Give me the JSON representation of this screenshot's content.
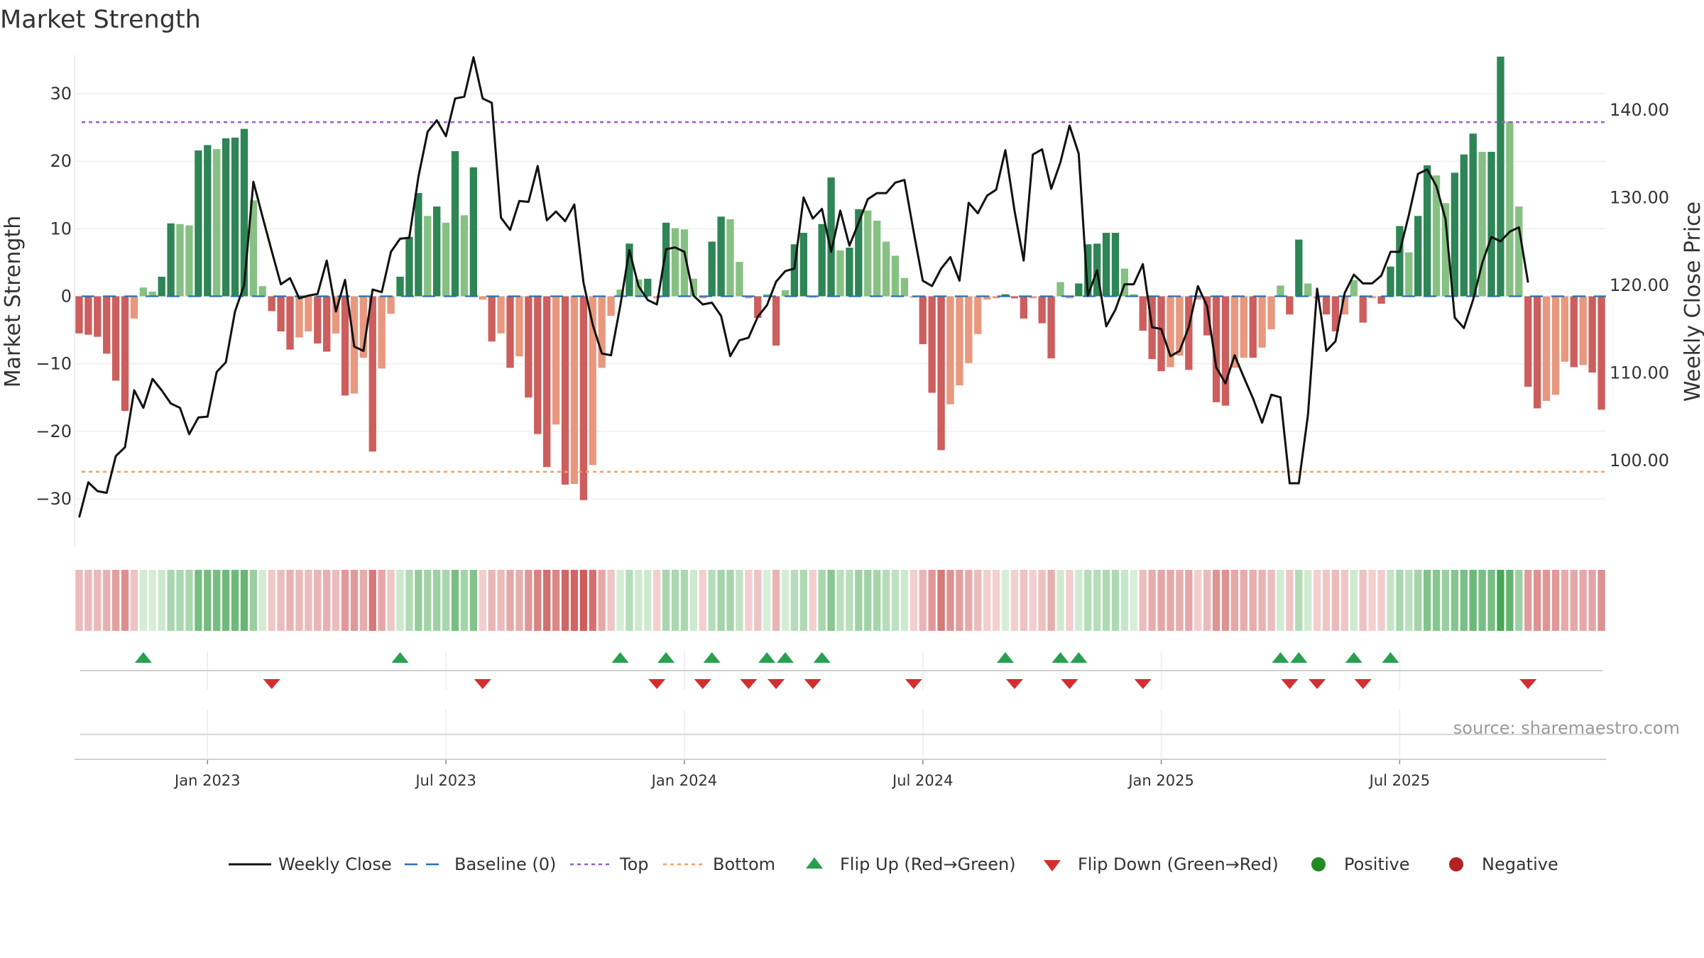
{
  "chart_data": {
    "type": "bar",
    "title": "Market Strength",
    "ylabel_left": "Market Strength",
    "ylabel_right": "Weekly Close Price",
    "ylim_left": [
      -36,
      38
    ],
    "ylim_right": [
      91,
      148
    ],
    "left_ticks": [
      30,
      20,
      10,
      0,
      -10,
      -20,
      -30
    ],
    "left_tick_labels": [
      "30",
      "20",
      "10",
      "0",
      "−10",
      "−20",
      "−30"
    ],
    "right_ticks": [
      140,
      130,
      120,
      110,
      100
    ],
    "right_tick_labels": [
      "140.00",
      "130.00",
      "120.00",
      "110.00",
      "100.00"
    ],
    "baseline": 0,
    "top_line": 25.8,
    "bottom_line": -26,
    "x_labels": [
      "Jan 2023",
      "Jul 2023",
      "Jan 2024",
      "Jul 2024",
      "Jan 2025",
      "Jul 2025"
    ],
    "x_label_positions": [
      14.5,
      40.5,
      66.5,
      92.5,
      118.5,
      144.5
    ],
    "strength": [
      -5.5,
      -5.7,
      -6,
      -8.5,
      -12.5,
      -17,
      -3.3,
      1.3,
      0.7,
      2.9,
      10.8,
      10.7,
      10.5,
      21.6,
      22.4,
      21.8,
      23.4,
      23.5,
      24.8,
      14.2,
      1.5,
      -2.2,
      -5.2,
      -7.9,
      -6.1,
      -5.2,
      -7,
      -8.2,
      -5.5,
      -14.7,
      -14.4,
      -9.1,
      -23,
      -10.7,
      -2.6,
      2.9,
      8.8,
      15.3,
      11.9,
      13.3,
      10.9,
      21.5,
      12,
      19.1,
      -0.5,
      -6.7,
      -5.5,
      -10.6,
      -8.9,
      -15,
      -20.4,
      -25.3,
      -19,
      -27.9,
      -27.8,
      -30.2,
      -25,
      -10.6,
      -2.9,
      1,
      7.8,
      2.5,
      2.6,
      -0.3,
      10.9,
      10.1,
      9.9,
      2.6,
      -0.3,
      8.1,
      11.8,
      11.4,
      5.1,
      -0.3,
      -3.2,
      0.3,
      -7.3,
      0.9,
      7.7,
      9.4,
      -0.2,
      10.7,
      17.6,
      6.8,
      7.2,
      12.9,
      12.7,
      11.2,
      8.1,
      6,
      2.7,
      -0.2,
      -7.1,
      -14.3,
      -22.8,
      -16,
      -13.2,
      -9.9,
      -5.6,
      -0.5,
      -0.3,
      0.3,
      -0.3,
      -3.3,
      -0.3,
      -4,
      -9.2,
      2.1,
      -0.3,
      1.9,
      7.7,
      7.8,
      9.4,
      9.4,
      4.1,
      0.3,
      -5.1,
      -9.3,
      -11.1,
      -10.5,
      -8.8,
      -10.9,
      -0.5,
      -5.8,
      -15.7,
      -16.2,
      -10.6,
      -9.1,
      -9.1,
      -7.6,
      -4.9,
      1.6,
      -2.7,
      8.4,
      1.9,
      -0.3,
      -2.7,
      -5.2,
      -2.7,
      2.4,
      -3.9,
      -0.3,
      -1.1,
      4.4,
      10.4,
      6.5,
      11.9,
      19.4,
      17.9,
      13.8,
      18.3,
      21,
      24.1,
      21.4,
      21.4,
      35.5,
      25.9,
      13.3,
      -13.4,
      -16.6,
      -15.5,
      -14.6,
      -9.7,
      -10.5,
      -10.2,
      -11.3,
      -16.8
    ],
    "close": [
      93.5,
      97.5,
      96.5,
      96.3,
      100.5,
      101.5,
      108,
      106,
      109.3,
      108,
      106.5,
      106,
      103,
      104.9,
      105,
      110.1,
      111.2,
      117,
      120,
      131.8,
      127.8,
      123.9,
      120.1,
      120.8,
      118.5,
      118.8,
      119,
      122.8,
      117,
      120.6,
      113,
      112.5,
      119.5,
      119.2,
      123.8,
      125.3,
      125.4,
      132.4,
      137.5,
      138.8,
      137,
      141.3,
      141.5,
      146,
      141.3,
      140.8,
      127.7,
      126.3,
      129.6,
      129.5,
      133.6,
      127.4,
      128.4,
      127.3,
      129.2,
      120.3,
      115.5,
      112.2,
      112,
      117.6,
      124,
      119.9,
      118.3,
      117.8,
      124.1,
      124.3,
      123.8,
      118.8,
      117.8,
      118,
      116.5,
      111.9,
      113.7,
      114,
      116.4,
      117.7,
      120.4,
      121.6,
      121.9,
      130,
      127.6,
      128.7,
      123.8,
      128.5,
      124.5,
      127.1,
      129.8,
      130.5,
      130.5,
      131.7,
      132,
      126.1,
      120.5,
      119.9,
      121.9,
      123.2,
      120.5,
      129.4,
      128.2,
      130.2,
      130.9,
      135.4,
      128.5,
      122.8,
      134.9,
      135.5,
      131,
      134,
      138.2,
      135,
      118.8,
      121.7,
      115.3,
      117.2,
      120.1,
      120.1,
      122.4,
      115.2,
      115,
      111.9,
      112.5,
      115.2,
      119.9,
      117.6,
      110.6,
      108.8,
      112,
      109.5,
      107.1,
      104.3,
      107.5,
      107.2,
      97.4,
      97.4,
      105.2,
      119.6,
      112.5,
      113.6,
      119.1,
      121.2,
      120.2,
      120.2,
      121.1,
      123.8,
      123.8,
      128,
      132.7,
      133.2,
      131.3,
      127.5,
      116.3,
      115.1,
      118.3,
      122.5,
      125.5,
      125,
      126.1,
      126.6,
      120.3
    ]
  },
  "legend": [
    {
      "key": "close",
      "label": "Weekly Close"
    },
    {
      "key": "baseline",
      "label": "Baseline (0)"
    },
    {
      "key": "top",
      "label": "Top"
    },
    {
      "key": "bottom",
      "label": "Bottom"
    },
    {
      "key": "flip_up",
      "label": "Flip Up (Red→Green)"
    },
    {
      "key": "flip_down",
      "label": "Flip Down (Green→Red)"
    },
    {
      "key": "positive",
      "label": "Positive"
    },
    {
      "key": "negative",
      "label": "Negative"
    }
  ],
  "source": "source: sharemaestro.com",
  "colors": {
    "pos_strong": "#2e8555",
    "pos_weak": "#86c183",
    "neg_strong": "#cc5e5e",
    "neg_weak": "#e8987e",
    "close_line": "#111111",
    "baseline": "#2e6fac",
    "top": "#9b59d0",
    "bottom": "#f0a060",
    "flip_up": "#28a050",
    "flip_down": "#d32f2f",
    "positive": "#228b22",
    "negative": "#b22222"
  }
}
